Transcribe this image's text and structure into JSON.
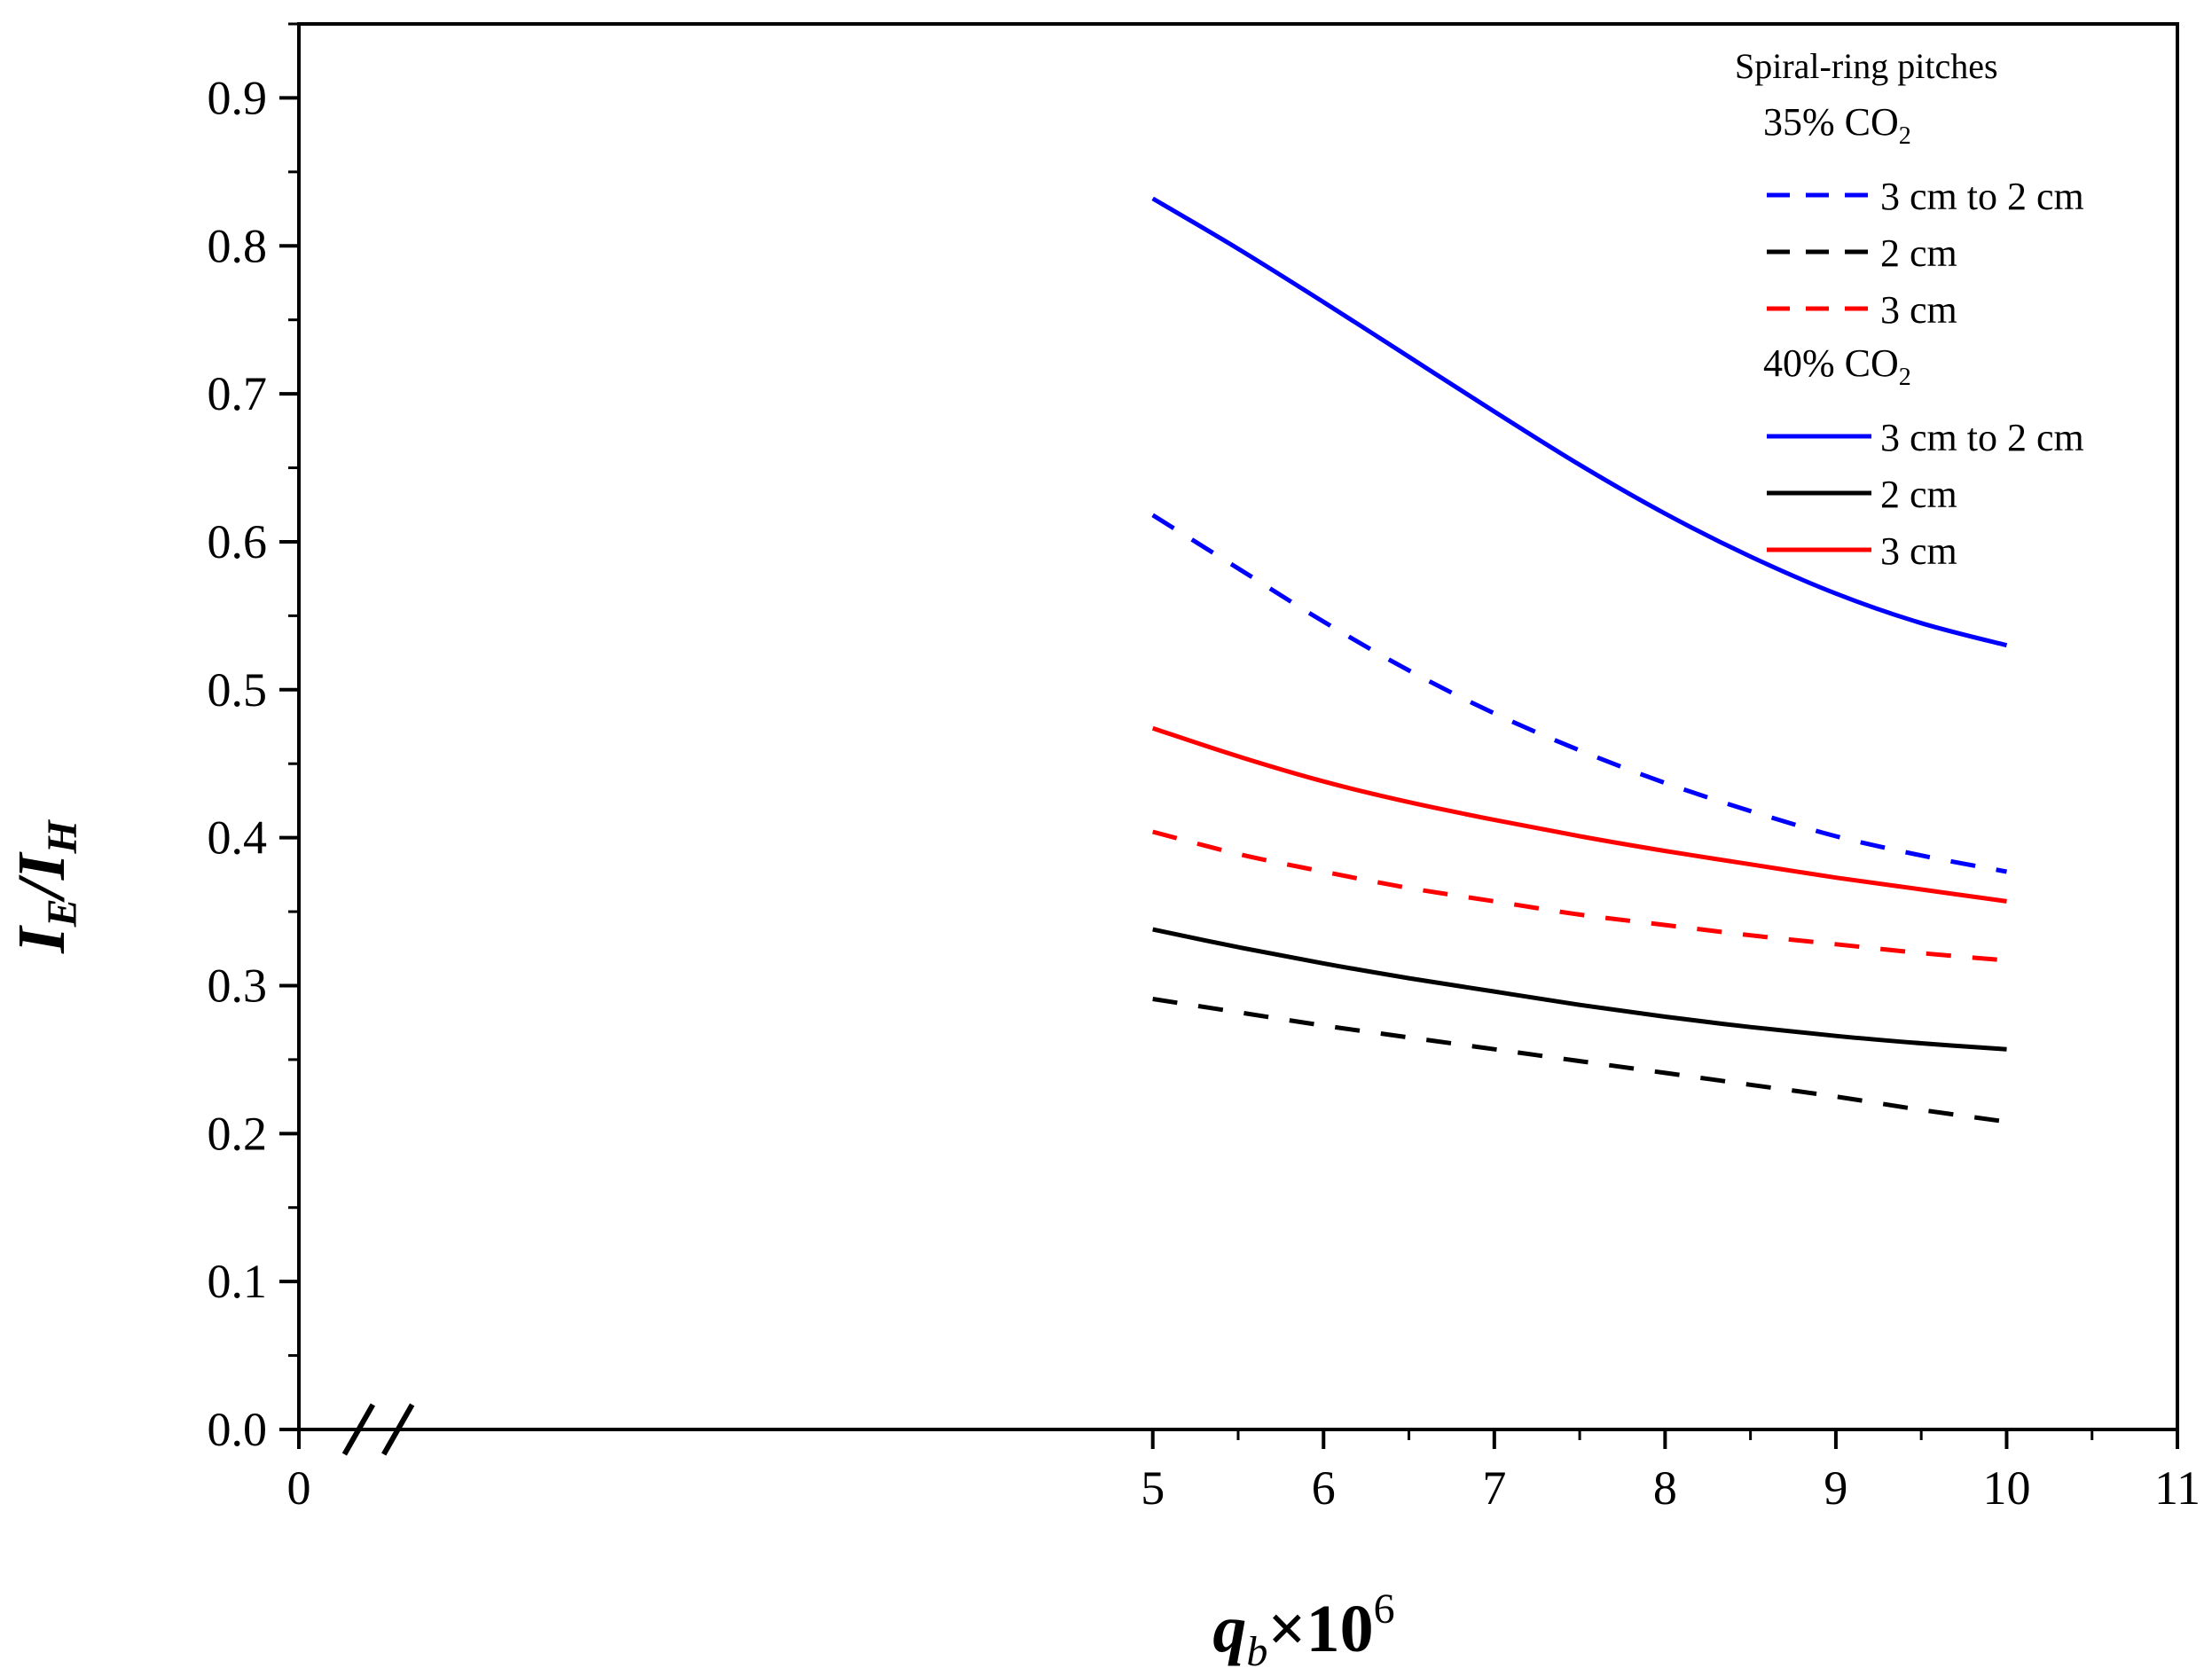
{
  "chart_data": {
    "type": "line",
    "title": "",
    "xlabel": {
      "base": "q",
      "sub": "b",
      "mult": "×10",
      "sup": "6"
    },
    "ylabel": {
      "num": "I",
      "num_sub": "E",
      "den": "I",
      "den_sub": "H"
    },
    "xlim": [
      0,
      11
    ],
    "ylim": [
      0,
      0.95
    ],
    "xticks": [
      0,
      5,
      6,
      7,
      8,
      9,
      10,
      11
    ],
    "xtick_labels": [
      "0",
      "5",
      "6",
      "7",
      "8",
      "9",
      "10",
      "11"
    ],
    "yticks": [
      0.0,
      0.1,
      0.2,
      0.3,
      0.4,
      0.5,
      0.6,
      0.7,
      0.8,
      0.9
    ],
    "ytick_labels": [
      "0.0",
      "0.1",
      "0.2",
      "0.3",
      "0.4",
      "0.5",
      "0.6",
      "0.7",
      "0.8",
      "0.9"
    ],
    "axis_break": {
      "between": [
        0,
        5
      ]
    },
    "legend": {
      "position": "top-right",
      "title": "Spiral-ring pitches",
      "groups": [
        {
          "label": "35% CO",
          "sub": "2",
          "entries": [
            "3 cm to 2 cm",
            "2 cm",
            "3 cm"
          ]
        },
        {
          "label": "40% CO",
          "sub": "2",
          "entries": [
            "3 cm to 2 cm",
            "2 cm",
            "3 cm"
          ]
        }
      ]
    },
    "x": [
      5,
      5.5,
      6,
      6.5,
      7,
      7.5,
      8,
      8.5,
      9,
      9.5,
      10
    ],
    "series": [
      {
        "name": "35% CO2 3 cm to 2 cm",
        "color": "#0000ff",
        "style": "dashed",
        "values": [
          0.618,
          0.582,
          0.546,
          0.513,
          0.484,
          0.459,
          0.437,
          0.418,
          0.401,
          0.388,
          0.377
        ]
      },
      {
        "name": "35% CO2 2 cm",
        "color": "#000000",
        "style": "dashed",
        "values": [
          0.291,
          0.282,
          0.273,
          0.265,
          0.257,
          0.249,
          0.241,
          0.233,
          0.225,
          0.216,
          0.208
        ]
      },
      {
        "name": "35% CO2 3 cm",
        "color": "#ff0000",
        "style": "dashed",
        "values": [
          0.404,
          0.389,
          0.377,
          0.366,
          0.357,
          0.348,
          0.341,
          0.334,
          0.328,
          0.322,
          0.317
        ]
      },
      {
        "name": "40% CO2 3 cm to 2 cm",
        "color": "#0000ff",
        "style": "solid",
        "values": [
          0.832,
          0.798,
          0.762,
          0.725,
          0.688,
          0.652,
          0.619,
          0.59,
          0.565,
          0.545,
          0.53
        ]
      },
      {
        "name": "40% CO2 2 cm",
        "color": "#000000",
        "style": "solid",
        "values": [
          0.338,
          0.326,
          0.315,
          0.305,
          0.296,
          0.287,
          0.279,
          0.272,
          0.266,
          0.261,
          0.257
        ]
      },
      {
        "name": "40% CO2 3 cm",
        "color": "#ff0000",
        "style": "solid",
        "values": [
          0.474,
          0.455,
          0.438,
          0.424,
          0.412,
          0.401,
          0.391,
          0.382,
          0.373,
          0.365,
          0.357
        ]
      }
    ]
  }
}
